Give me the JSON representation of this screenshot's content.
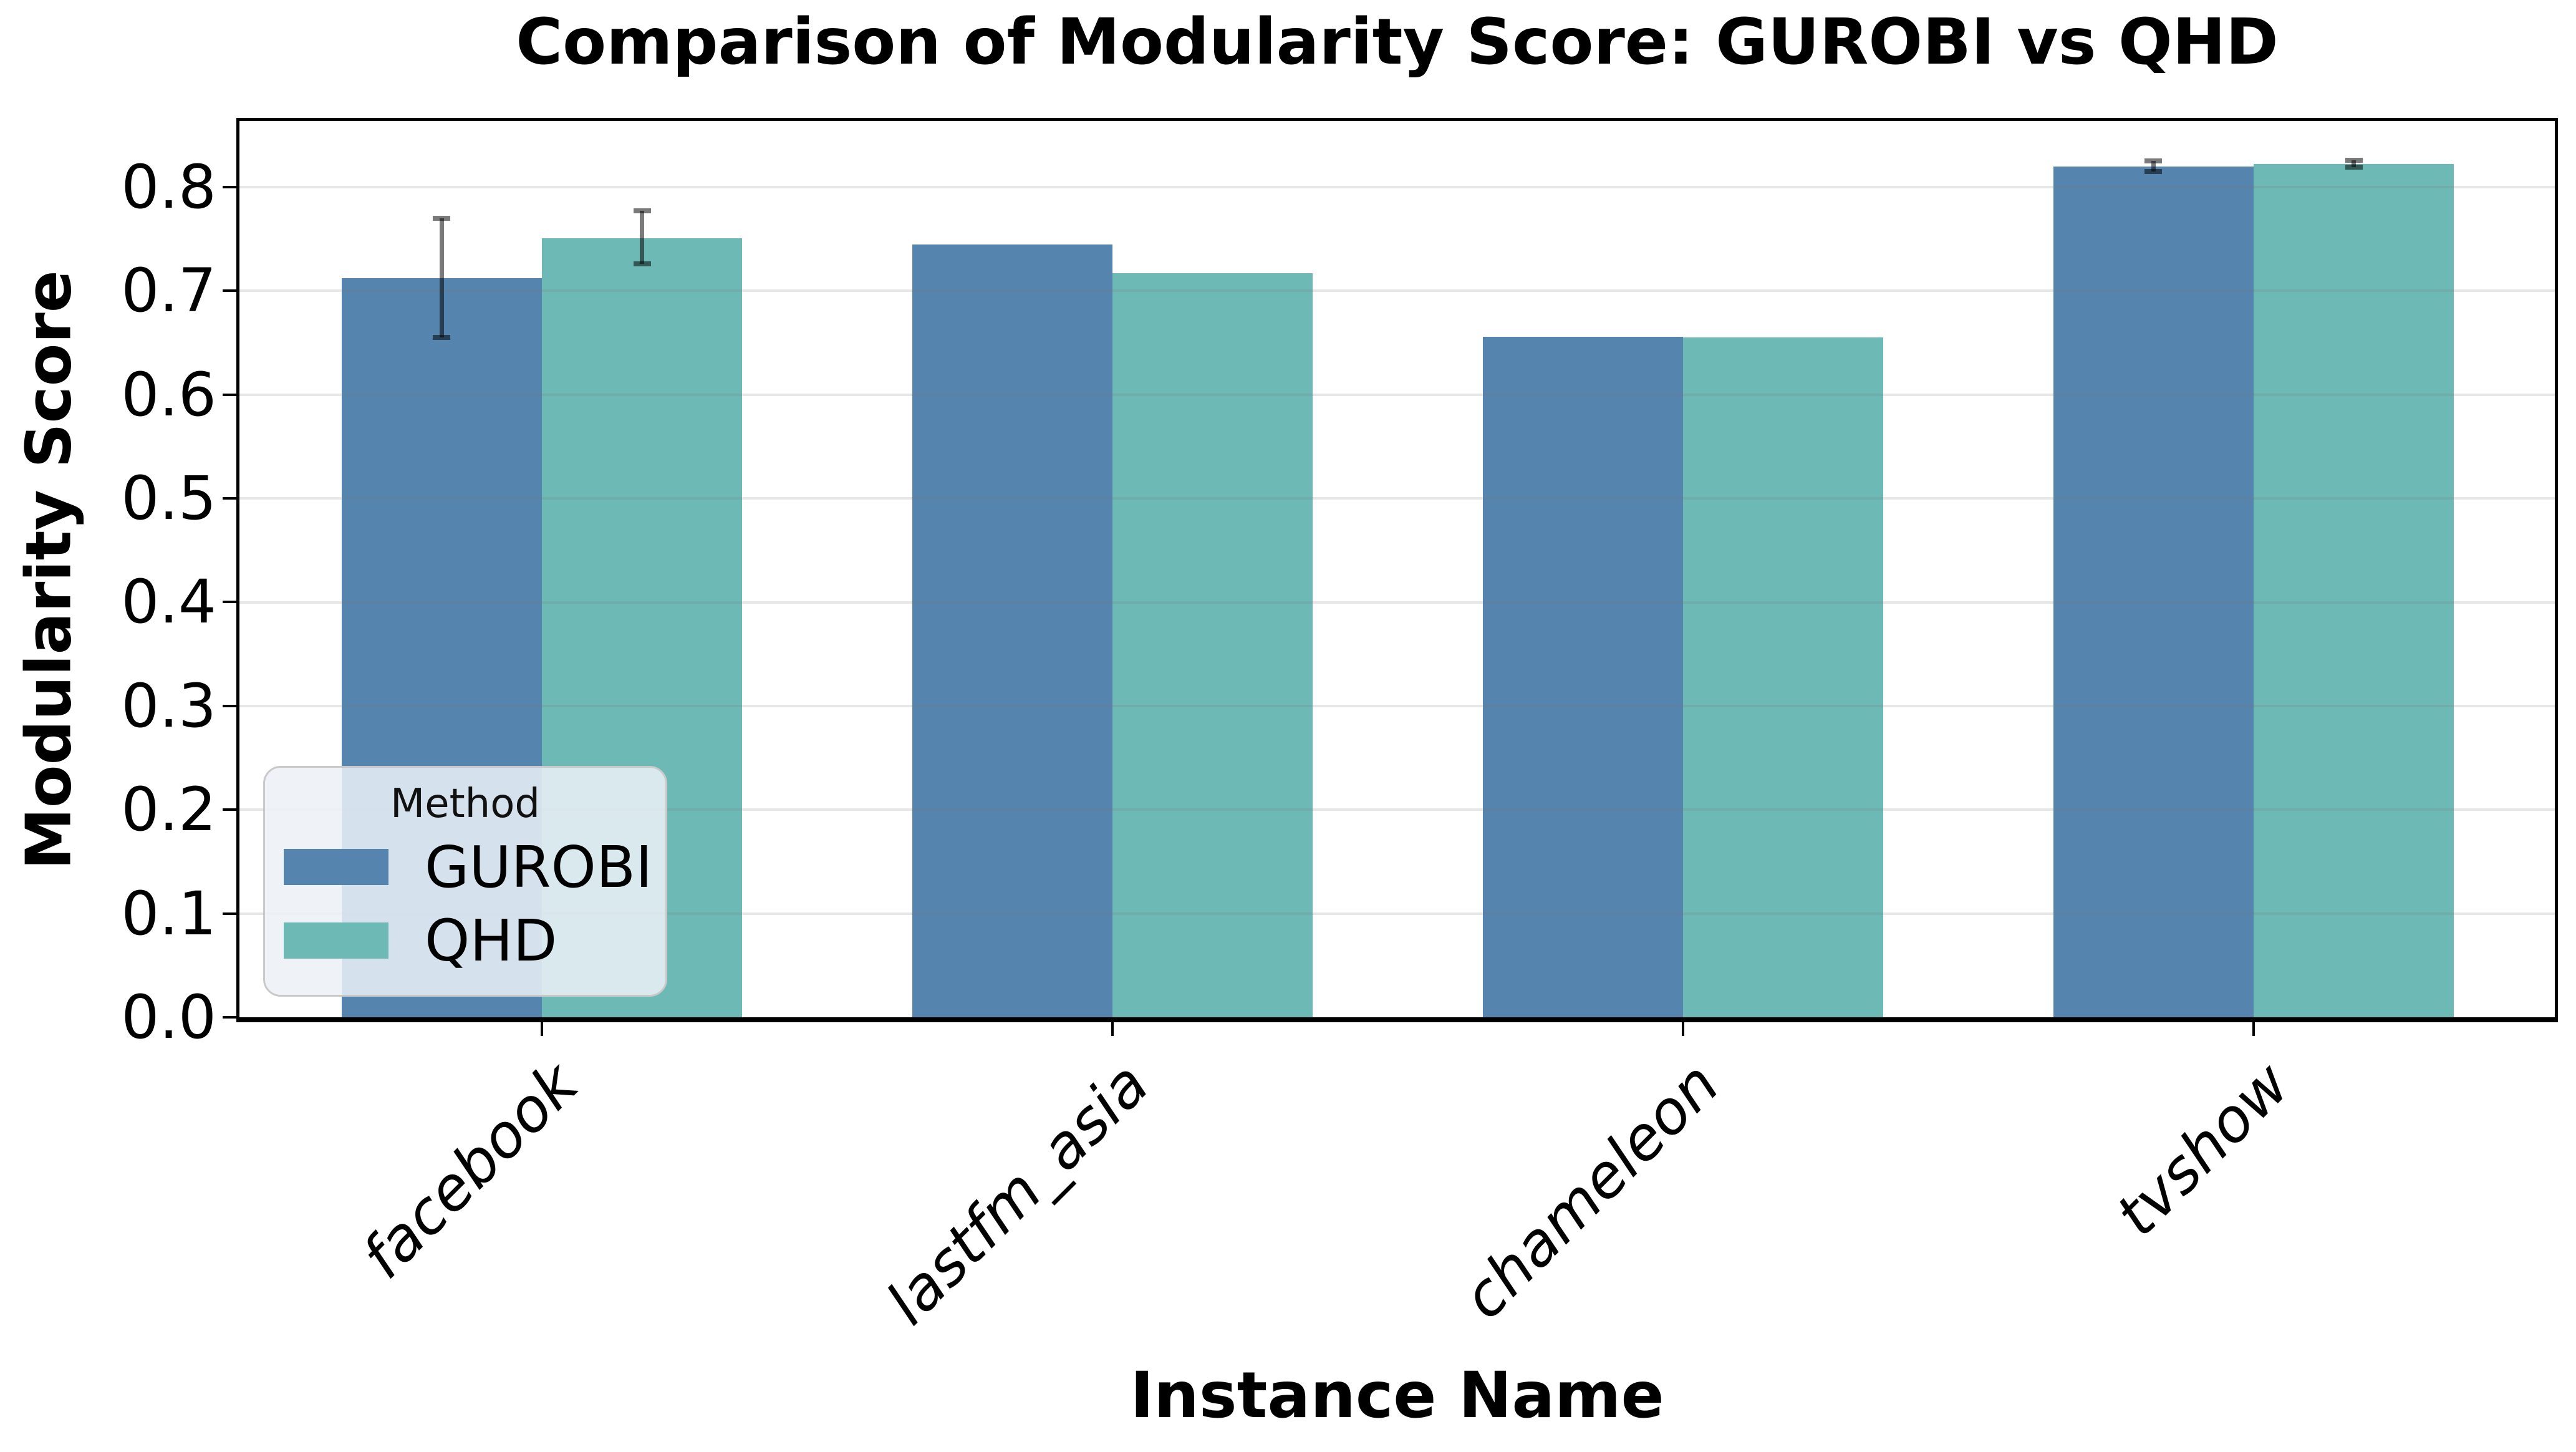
{
  "chart_data": {
    "type": "bar",
    "title": "Comparison of Modularity Score: GUROBI vs QHD",
    "xlabel": "Instance Name",
    "ylabel": "Modularity Score",
    "categories": [
      "facebook",
      "lastfm_asia",
      "chameleon",
      "tvshow"
    ],
    "series": [
      {
        "name": "GUROBI",
        "color": "#5584ae",
        "values": [
          0.712,
          0.745,
          0.656,
          0.82
        ],
        "err_low": [
          0.655,
          null,
          null,
          0.815
        ],
        "err_high": [
          0.77,
          null,
          null,
          0.825
        ]
      },
      {
        "name": "QHD",
        "color": "#6cb9b5",
        "values": [
          0.751,
          0.717,
          0.655,
          0.822
        ],
        "err_low": [
          0.726,
          null,
          null,
          0.819
        ],
        "err_high": [
          0.777,
          null,
          null,
          0.826
        ]
      }
    ],
    "ylim": [
      0.0,
      0.864
    ],
    "yticks": [
      0.0,
      0.1,
      0.2,
      0.3,
      0.4,
      0.5,
      0.6,
      0.7,
      0.8
    ],
    "ytick_labels": [
      "0.0",
      "0.1",
      "0.2",
      "0.3",
      "0.4",
      "0.5",
      "0.6",
      "0.7",
      "0.8"
    ],
    "grid": true,
    "grid_color": "#e7e7e7",
    "error_color": "rgba(0,0,0,0.52)",
    "legend": {
      "title": "Method",
      "position": "lower-left"
    }
  }
}
